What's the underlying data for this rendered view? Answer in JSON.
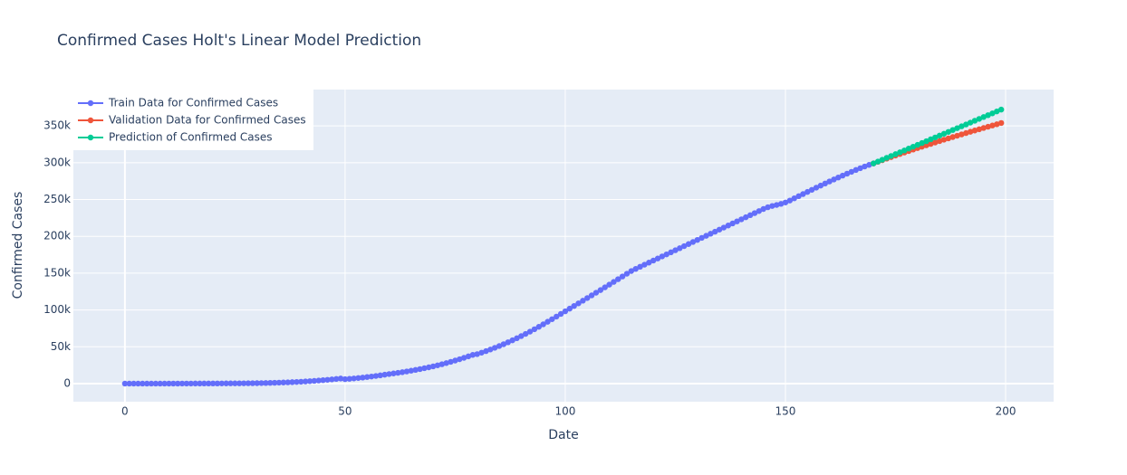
{
  "chart_data": {
    "type": "line",
    "title": "Confirmed Cases Holt's Linear Model Prediction",
    "x_label": "Date",
    "y_label": "Confirmed Cases",
    "xlim": [
      -11.7,
      210.9
    ],
    "ylim": [
      -24600,
      399300
    ],
    "xticks": [
      0,
      50,
      100,
      150,
      200
    ],
    "yticks": [
      0,
      {
        "value": 50000,
        "label": "50k"
      },
      {
        "value": 100000,
        "label": "100k"
      },
      {
        "value": 150000,
        "label": "150k"
      },
      {
        "value": 200000,
        "label": "200k"
      },
      {
        "value": 250000,
        "label": "250k"
      },
      {
        "value": 300000,
        "label": "300k"
      },
      {
        "value": 350000,
        "label": "350k"
      }
    ],
    "grid": true,
    "legend": "top-left",
    "series": [
      {
        "name": "Train Data for Confirmed Cases",
        "color": "#636efa",
        "x": [
          0,
          1,
          2,
          3,
          4,
          5,
          6,
          7,
          8,
          9,
          10,
          11,
          12,
          13,
          14,
          15,
          16,
          17,
          18,
          19,
          20,
          21,
          22,
          23,
          24,
          25,
          26,
          27,
          28,
          29,
          30,
          31,
          32,
          33,
          34,
          35,
          36,
          37,
          38,
          39,
          40,
          41,
          42,
          43,
          44,
          45,
          46,
          47,
          48,
          49,
          50,
          51,
          52,
          53,
          54,
          55,
          56,
          57,
          58,
          59,
          60,
          61,
          62,
          63,
          64,
          65,
          66,
          67,
          68,
          69,
          70,
          71,
          72,
          73,
          74,
          75,
          76,
          77,
          78,
          79,
          80,
          81,
          82,
          83,
          84,
          85,
          86,
          87,
          88,
          89,
          90,
          91,
          92,
          93,
          94,
          95,
          96,
          97,
          98,
          99,
          100,
          101,
          102,
          103,
          104,
          105,
          106,
          107,
          108,
          109,
          110,
          111,
          112,
          113,
          114,
          115,
          116,
          117,
          118,
          119,
          120,
          121,
          122,
          123,
          124,
          125,
          126,
          127,
          128,
          129,
          130,
          131,
          132,
          133,
          134,
          135,
          136,
          137,
          138,
          139,
          140,
          141,
          142,
          143,
          144,
          145,
          146,
          147,
          148,
          149,
          150,
          151,
          152,
          153,
          154,
          155,
          156,
          157,
          158,
          159,
          160,
          161,
          162,
          163,
          164,
          165,
          166,
          167,
          168,
          169,
          170
        ],
        "values": [
          0,
          2,
          3,
          5,
          8,
          12,
          16,
          20,
          25,
          30,
          40,
          50,
          60,
          70,
          85,
          100,
          115,
          130,
          150,
          170,
          190,
          210,
          240,
          270,
          300,
          330,
          370,
          410,
          460,
          520,
          600,
          700,
          820,
          960,
          1120,
          1300,
          1500,
          1720,
          1970,
          2250,
          2550,
          2900,
          3300,
          3700,
          4150,
          4650,
          5150,
          5700,
          6300,
          6900,
          6000,
          6500,
          7000,
          7600,
          8200,
          8900,
          9600,
          10400,
          11200,
          12100,
          13000,
          13800,
          14600,
          15500,
          16500,
          17500,
          18600,
          19700,
          20900,
          22100,
          23400,
          24800,
          26300,
          27900,
          29600,
          31300,
          33100,
          35000,
          37000,
          39000,
          40000,
          42000,
          44100,
          46300,
          48600,
          51000,
          53500,
          56100,
          58800,
          61600,
          64500,
          67500,
          70600,
          73800,
          77100,
          80500,
          84000,
          87500,
          91000,
          94600,
          98200,
          101800,
          105400,
          109000,
          112600,
          116200,
          119800,
          123400,
          127000,
          130700,
          134400,
          138100,
          141800,
          145500,
          149200,
          152900,
          155800,
          158700,
          161500,
          164300,
          167100,
          169900,
          172700,
          175500,
          178300,
          181100,
          183900,
          186700,
          189500,
          192300,
          195100,
          197900,
          200700,
          203500,
          206300,
          209100,
          211900,
          214700,
          217500,
          220300,
          223100,
          225900,
          228700,
          231500,
          234300,
          237100,
          239500,
          241200,
          242600,
          244100,
          246000,
          248600,
          251600,
          254500,
          257400,
          260300,
          263200,
          266100,
          268900,
          271700,
          274500,
          277200,
          279900,
          282500,
          285100,
          287600,
          290100,
          292500,
          294800,
          297000,
          299000
        ]
      },
      {
        "name": "Validation Data for Confirmed Cases",
        "color": "#ef553b",
        "x": [
          170,
          171,
          172,
          173,
          174,
          175,
          176,
          177,
          178,
          179,
          180,
          181,
          182,
          183,
          184,
          185,
          186,
          187,
          188,
          189,
          190,
          191,
          192,
          193,
          194,
          195,
          196,
          197,
          198,
          199
        ],
        "values": [
          299000,
          301200,
          303400,
          305500,
          307600,
          309700,
          311800,
          313800,
          315800,
          317800,
          319800,
          321700,
          323600,
          325500,
          327400,
          329300,
          331200,
          333000,
          334800,
          336600,
          338400,
          340200,
          342000,
          343700,
          345400,
          347100,
          348800,
          350500,
          352200,
          353900
        ]
      },
      {
        "name": "Prediction of Confirmed Cases",
        "color": "#00cc96",
        "x": [
          170,
          171,
          172,
          173,
          174,
          175,
          176,
          177,
          178,
          179,
          180,
          181,
          182,
          183,
          184,
          185,
          186,
          187,
          188,
          189,
          190,
          191,
          192,
          193,
          194,
          195,
          196,
          197,
          198,
          199
        ],
        "values": [
          299000,
          301500,
          304000,
          306600,
          309100,
          311600,
          314100,
          316600,
          319200,
          321700,
          324200,
          326700,
          329200,
          331800,
          334300,
          336800,
          339300,
          341800,
          344400,
          346900,
          349400,
          351900,
          354400,
          357000,
          359500,
          362000,
          364500,
          367000,
          369600,
          372100
        ]
      }
    ]
  }
}
